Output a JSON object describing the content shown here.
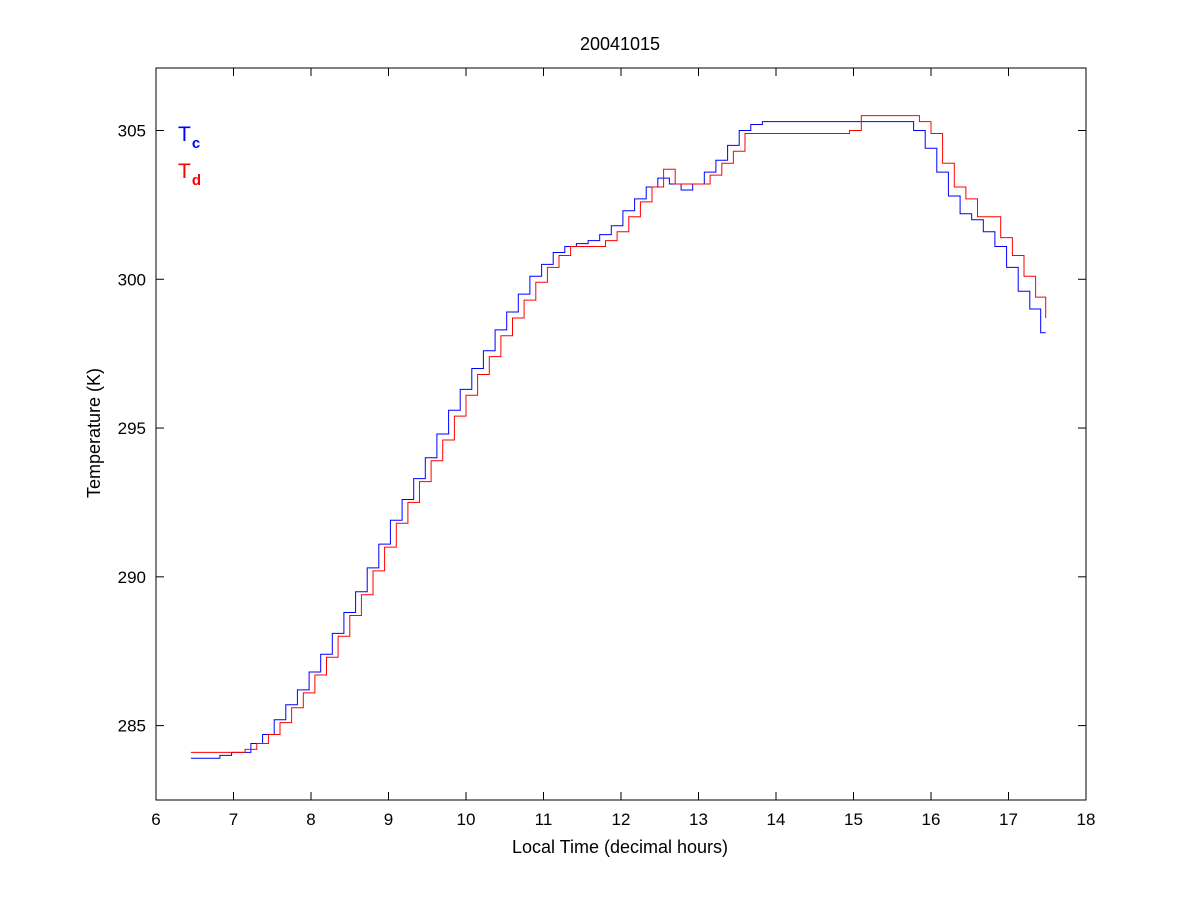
{
  "chart_data": {
    "type": "line",
    "title": "20041015",
    "xlabel": "Local Time (decimal hours)",
    "ylabel": "Temperature (K)",
    "xlim": [
      6,
      18
    ],
    "ylim": [
      282.5,
      307.1
    ],
    "xticks": [
      6,
      7,
      8,
      9,
      10,
      11,
      12,
      13,
      14,
      15,
      16,
      17,
      18
    ],
    "yticks": [
      285,
      290,
      295,
      300,
      305
    ],
    "grid": false,
    "legend_position": "top-left",
    "series": [
      {
        "name": "Tc",
        "legend_main": "T",
        "legend_sub": "c",
        "color": "#0000ff",
        "style": "noisy-step",
        "x": [
          6.45,
          6.6,
          6.75,
          6.9,
          7.05,
          7.15,
          7.3,
          7.45,
          7.6,
          7.75,
          7.9,
          8.05,
          8.2,
          8.35,
          8.5,
          8.65,
          8.8,
          8.95,
          9.1,
          9.25,
          9.4,
          9.55,
          9.7,
          9.85,
          10.0,
          10.15,
          10.3,
          10.45,
          10.6,
          10.75,
          10.9,
          11.05,
          11.2,
          11.35,
          11.5,
          11.65,
          11.8,
          11.95,
          12.1,
          12.25,
          12.4,
          12.55,
          12.7,
          12.85,
          13.0,
          13.15,
          13.3,
          13.45,
          13.6,
          13.75,
          13.9,
          14.05,
          14.2,
          14.35,
          14.5,
          14.65,
          14.8,
          14.95,
          15.1,
          15.25,
          15.4,
          15.55,
          15.7,
          15.85,
          16.0,
          16.15,
          16.3,
          16.45,
          16.6,
          16.75,
          16.9,
          17.05,
          17.2,
          17.35,
          17.48
        ],
        "y": [
          283.9,
          283.9,
          283.9,
          284.0,
          284.1,
          284.1,
          284.4,
          284.7,
          285.2,
          285.7,
          286.2,
          286.8,
          287.4,
          288.1,
          288.8,
          289.5,
          290.3,
          291.1,
          291.9,
          292.6,
          293.3,
          294.0,
          294.8,
          295.6,
          296.3,
          297.0,
          297.6,
          298.3,
          298.9,
          299.5,
          300.1,
          300.5,
          300.9,
          301.1,
          301.2,
          301.3,
          301.5,
          301.8,
          302.3,
          302.7,
          303.1,
          303.4,
          303.2,
          303.0,
          303.2,
          303.6,
          304.0,
          304.5,
          305.0,
          305.2,
          305.3,
          305.3,
          305.3,
          305.3,
          305.3,
          305.3,
          305.3,
          305.3,
          305.3,
          305.3,
          305.3,
          305.3,
          305.3,
          305.0,
          304.4,
          303.6,
          302.8,
          302.2,
          302.0,
          301.6,
          301.1,
          300.4,
          299.6,
          299.0,
          298.2
        ]
      },
      {
        "name": "Td",
        "legend_main": "T",
        "legend_sub": "d",
        "color": "#ff0000",
        "style": "step",
        "x": [
          6.45,
          6.6,
          6.75,
          6.9,
          7.05,
          7.15,
          7.3,
          7.45,
          7.6,
          7.75,
          7.9,
          8.05,
          8.2,
          8.35,
          8.5,
          8.65,
          8.8,
          8.95,
          9.1,
          9.25,
          9.4,
          9.55,
          9.7,
          9.85,
          10.0,
          10.15,
          10.3,
          10.45,
          10.6,
          10.75,
          10.9,
          11.05,
          11.2,
          11.35,
          11.5,
          11.65,
          11.8,
          11.95,
          12.1,
          12.25,
          12.4,
          12.55,
          12.7,
          12.85,
          13.0,
          13.15,
          13.3,
          13.45,
          13.6,
          13.75,
          13.9,
          14.05,
          14.2,
          14.35,
          14.5,
          14.65,
          14.8,
          14.95,
          15.1,
          15.25,
          15.4,
          15.55,
          15.7,
          15.85,
          16.0,
          16.15,
          16.3,
          16.45,
          16.6,
          16.75,
          16.9,
          17.05,
          17.2,
          17.35,
          17.48
        ],
        "y": [
          284.1,
          284.1,
          284.1,
          284.1,
          284.1,
          284.2,
          284.4,
          284.7,
          285.1,
          285.6,
          286.1,
          286.7,
          287.3,
          288.0,
          288.7,
          289.4,
          290.2,
          291.0,
          291.8,
          292.5,
          293.2,
          293.9,
          294.6,
          295.4,
          296.1,
          296.8,
          297.4,
          298.1,
          298.7,
          299.3,
          299.9,
          300.4,
          300.8,
          301.1,
          301.1,
          301.1,
          301.3,
          301.6,
          302.1,
          302.6,
          303.1,
          303.7,
          303.2,
          303.2,
          303.2,
          303.5,
          303.9,
          304.3,
          304.9,
          304.9,
          304.9,
          304.9,
          304.9,
          304.9,
          304.9,
          304.9,
          304.9,
          305.0,
          305.5,
          305.5,
          305.5,
          305.5,
          305.5,
          305.3,
          304.9,
          303.9,
          303.1,
          302.7,
          302.1,
          302.1,
          301.4,
          300.8,
          300.1,
          299.4,
          298.7
        ]
      }
    ]
  }
}
